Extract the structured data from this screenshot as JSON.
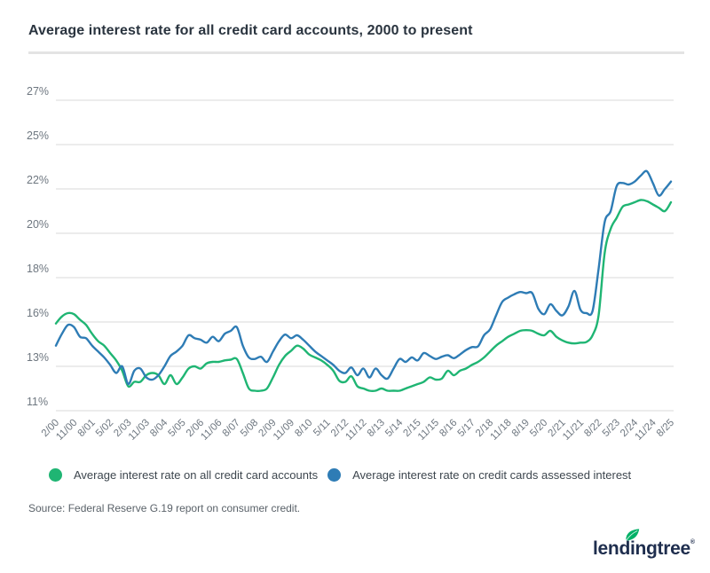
{
  "title": "Average interest rate for all credit card accounts, 2000 to present",
  "source": "Source: Federal Reserve G.19 report on consumer credit.",
  "logo": {
    "text": "lendingtree",
    "registered": "®",
    "text_color": "#1f2e4e",
    "leaf_color": "#00b167"
  },
  "legend": {
    "items": [
      {
        "label": "Average interest rate on all credit card accounts",
        "color": "#1fb573"
      },
      {
        "label": "Average interest rate on credit cards assessed interest",
        "color": "#2e7cb5"
      }
    ]
  },
  "colors": {
    "grid": "#dadada",
    "axis_text": "#6e7780",
    "title_text": "#2a343f"
  },
  "chart_data": {
    "type": "line",
    "title": "Average interest rate for all credit card accounts, 2000 to present",
    "xlabel": "",
    "ylabel": "",
    "grid": true,
    "legend_position": "bottom",
    "points_per_year": 4,
    "x_range_note": "quarterly data, Feb 2000 through Aug 2025",
    "x_tick_labels": [
      "2/00",
      "11/00",
      "8/01",
      "5/02",
      "2/03",
      "11/03",
      "8/04",
      "5/05",
      "2/06",
      "11/06",
      "8/07",
      "5/08",
      "2/09",
      "11/09",
      "8/10",
      "5/11",
      "2/12",
      "11/12",
      "8/13",
      "5/14",
      "2/15",
      "11/15",
      "8/16",
      "5/17",
      "2/18",
      "11/18",
      "8/19",
      "5/20",
      "2/21",
      "11/21",
      "8/22",
      "5/23",
      "2/24",
      "11/24",
      "8/25"
    ],
    "x_tick_every_n_points": 3,
    "y_tick_labels": [
      "27%",
      "25%",
      "22%",
      "20%",
      "18%",
      "16%",
      "13%",
      "11%"
    ],
    "y_tick_values": [
      27,
      25,
      22,
      20,
      18,
      16,
      13,
      11
    ],
    "series": [
      {
        "name": "Average interest rate on all credit card accounts",
        "color": "#1fb573",
        "values": [
          15.9,
          16.25,
          16.4,
          16.35,
          16.1,
          15.8,
          15.2,
          14.7,
          14.4,
          13.9,
          13.4,
          12.8,
          12.1,
          12.3,
          12.3,
          12.6,
          12.7,
          12.6,
          12.2,
          12.6,
          12.2,
          12.5,
          12.9,
          13.0,
          12.9,
          13.2,
          13.3,
          13.3,
          13.4,
          13.45,
          13.5,
          12.7,
          12.0,
          11.9,
          11.9,
          12.0,
          12.5,
          13.1,
          13.7,
          14.05,
          14.4,
          14.2,
          13.8,
          13.6,
          13.4,
          13.1,
          12.8,
          12.35,
          12.3,
          12.55,
          12.1,
          12.0,
          11.9,
          11.9,
          12.0,
          11.9,
          11.9,
          11.9,
          12.0,
          12.1,
          12.2,
          12.3,
          12.5,
          12.4,
          12.45,
          12.8,
          12.6,
          12.8,
          12.9,
          13.1,
          13.3,
          13.6,
          14.0,
          14.4,
          14.7,
          15.0,
          15.2,
          15.4,
          15.45,
          15.4,
          15.2,
          15.1,
          15.4,
          15.0,
          14.75,
          14.6,
          14.55,
          14.6,
          14.65,
          15.1,
          16.3,
          19.1,
          20.2,
          20.7,
          21.2,
          21.3,
          21.4,
          21.5,
          21.45,
          21.3,
          21.15,
          21.0,
          21.4
        ]
      },
      {
        "name": "Average interest rate on credit cards assessed interest",
        "color": "#2e7cb5",
        "values": [
          14.4,
          15.2,
          15.8,
          15.65,
          15.0,
          14.9,
          14.4,
          14.0,
          13.6,
          13.1,
          12.7,
          13.0,
          12.2,
          12.8,
          12.9,
          12.5,
          12.4,
          12.6,
          13.0,
          13.7,
          14.0,
          14.4,
          15.1,
          14.9,
          14.8,
          14.6,
          15.0,
          14.7,
          15.2,
          15.4,
          15.65,
          14.4,
          13.6,
          13.5,
          13.65,
          13.3,
          14.0,
          14.7,
          15.15,
          14.9,
          15.1,
          14.8,
          14.4,
          14.0,
          13.7,
          13.4,
          13.1,
          12.8,
          12.7,
          12.95,
          12.6,
          12.9,
          12.5,
          12.9,
          12.6,
          12.45,
          12.9,
          13.5,
          13.3,
          13.6,
          13.4,
          13.9,
          13.7,
          13.5,
          13.65,
          13.75,
          13.55,
          13.8,
          14.1,
          14.3,
          14.35,
          15.1,
          15.5,
          16.3,
          16.9,
          17.1,
          17.25,
          17.35,
          17.3,
          17.3,
          16.6,
          16.35,
          16.8,
          16.5,
          16.3,
          16.7,
          17.4,
          16.55,
          16.4,
          16.5,
          18.4,
          20.5,
          21.0,
          22.2,
          22.4,
          22.3,
          22.5,
          22.9,
          23.2,
          22.4,
          21.7,
          22.0,
          22.5
        ]
      }
    ]
  }
}
